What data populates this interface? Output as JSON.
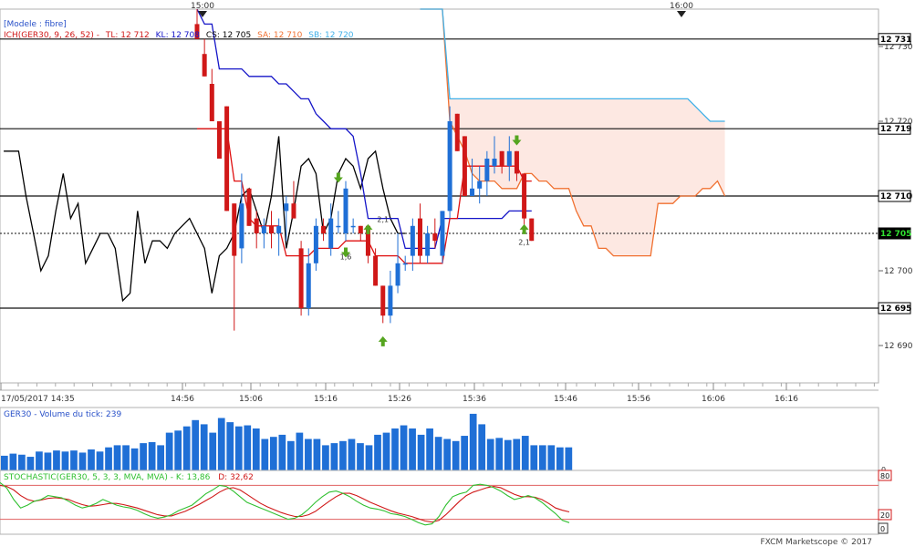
{
  "colors": {
    "candle_up": "#1f6fd6",
    "candle_down": "#d01818",
    "tenkan": "#e01010",
    "kijun": "#1515c8",
    "chikou": "#000000",
    "senkou_a": "#f07030",
    "senkou_b": "#40b0e8",
    "cloud_fill": "#fde8e2",
    "volume": "#1f6fd6",
    "stoch_k": "#30c030",
    "stoch_d": "#d01818",
    "arrow_up": "#55a51f",
    "arrow_down": "#55a51f"
  },
  "header": {
    "model_label": "[Modele : fibre]",
    "ich_label": "ICH(GER30, 9, 26, 52) -",
    "tl": "TL: 12 712",
    "kl": "KL: 12 708",
    "cs": "CS: 12 705",
    "sa": "SA: 12 710",
    "sb": "SB: 12 720"
  },
  "top_time_markers": [
    "15:00",
    "16:00"
  ],
  "price_axis": {
    "ticks": [
      "12 730",
      "12 720",
      "12 710",
      "12 700",
      "12 690"
    ],
    "level_labels": [
      "12 731",
      "12 719",
      "12 710",
      "12 705",
      "12 695"
    ]
  },
  "time_axis": {
    "labels": [
      "17/05/2017 14:35",
      "14:56",
      "15:06",
      "15:16",
      "15:26",
      "15:36",
      "15:46",
      "15:56",
      "16:06",
      "16:16"
    ]
  },
  "signal_labels": [
    "1,6",
    "2,1",
    "2,1"
  ],
  "volume_panel": {
    "label": "GER30 - Volume du tick: 239",
    "axis_zero": "0"
  },
  "stoch_panel": {
    "label_prefix": "STOCHASTIC(GER30, 5, 3, 3, MVA, MVA) - ",
    "k_label": "K: 13,86",
    "d_label": "D: 32,62",
    "level_80": "80",
    "level_20": "20",
    "level_0": "0"
  },
  "footer": {
    "copyright": "FXCM Marketscope © 2017"
  },
  "chart_data": {
    "type": "candlestick",
    "instrument": "GER30",
    "ylim": [
      12685,
      12735
    ],
    "horizontal_levels": [
      12731,
      12719,
      12710,
      12695
    ],
    "current_price": 12705,
    "candles": [
      {
        "o": 12733,
        "h": 12735,
        "l": 12731,
        "c": 12731
      },
      {
        "o": 12729,
        "h": 12731,
        "l": 12726,
        "c": 12726
      },
      {
        "o": 12725,
        "h": 12727,
        "l": 12720,
        "c": 12720
      },
      {
        "o": 12720,
        "h": 12720,
        "l": 12715,
        "c": 12715
      },
      {
        "o": 12722,
        "h": 12722,
        "l": 12708,
        "c": 12708
      },
      {
        "o": 12709,
        "h": 12709,
        "l": 12692,
        "c": 12702
      },
      {
        "o": 12703,
        "h": 12713,
        "l": 12701,
        "c": 12709
      },
      {
        "o": 12711,
        "h": 12711,
        "l": 12706,
        "c": 12706
      },
      {
        "o": 12707,
        "h": 12708,
        "l": 12703,
        "c": 12705
      },
      {
        "o": 12705,
        "h": 12707,
        "l": 12703,
        "c": 12706
      },
      {
        "o": 12706,
        "h": 12708,
        "l": 12703,
        "c": 12705
      },
      {
        "o": 12705,
        "h": 12707,
        "l": 12702,
        "c": 12706
      },
      {
        "o": 12708,
        "h": 12710,
        "l": 12704,
        "c": 12709
      },
      {
        "o": 12709,
        "h": 12712,
        "l": 12707,
        "c": 12707
      },
      {
        "o": 12703,
        "h": 12704,
        "l": 12694,
        "c": 12695
      },
      {
        "o": 12695,
        "h": 12703,
        "l": 12694,
        "c": 12701
      },
      {
        "o": 12701,
        "h": 12707,
        "l": 12700,
        "c": 12706
      },
      {
        "o": 12706,
        "h": 12707,
        "l": 12704,
        "c": 12705
      },
      {
        "o": 12703,
        "h": 12709,
        "l": 12702,
        "c": 12707
      },
      {
        "o": 12706,
        "h": 12708,
        "l": 12705,
        "c": 12706
      },
      {
        "o": 12705,
        "h": 12712,
        "l": 12704,
        "c": 12711
      },
      {
        "o": 12706,
        "h": 12707,
        "l": 12705,
        "c": 12706
      },
      {
        "o": 12706,
        "h": 12706,
        "l": 12704,
        "c": 12705
      },
      {
        "o": 12706,
        "h": 12706,
        "l": 12701,
        "c": 12702
      },
      {
        "o": 12702,
        "h": 12703,
        "l": 12698,
        "c": 12698
      },
      {
        "o": 12698,
        "h": 12698,
        "l": 12693,
        "c": 12694
      },
      {
        "o": 12694,
        "h": 12700,
        "l": 12693,
        "c": 12698
      },
      {
        "o": 12698,
        "h": 12705,
        "l": 12697,
        "c": 12701
      },
      {
        "o": 12701,
        "h": 12702,
        "l": 12700,
        "c": 12701
      },
      {
        "o": 12702,
        "h": 12707,
        "l": 12700,
        "c": 12706
      },
      {
        "o": 12707,
        "h": 12709,
        "l": 12701,
        "c": 12702
      },
      {
        "o": 12702,
        "h": 12706,
        "l": 12701,
        "c": 12705
      },
      {
        "o": 12705,
        "h": 12707,
        "l": 12703,
        "c": 12704
      },
      {
        "o": 12702,
        "h": 12708,
        "l": 12701,
        "c": 12708
      },
      {
        "o": 12708,
        "h": 12722,
        "l": 12707,
        "c": 12720
      },
      {
        "o": 12721,
        "h": 12721,
        "l": 12716,
        "c": 12716
      },
      {
        "o": 12718,
        "h": 12718,
        "l": 12710,
        "c": 12710
      },
      {
        "o": 12710,
        "h": 12715,
        "l": 12710,
        "c": 12711
      },
      {
        "o": 12711,
        "h": 12714,
        "l": 12709,
        "c": 12712
      },
      {
        "o": 12712,
        "h": 12716,
        "l": 12710,
        "c": 12715
      },
      {
        "o": 12714,
        "h": 12718,
        "l": 12713,
        "c": 12715
      },
      {
        "o": 12716,
        "h": 12716,
        "l": 12713,
        "c": 12714
      },
      {
        "o": 12714,
        "h": 12718,
        "l": 12712,
        "c": 12716
      },
      {
        "o": 12716,
        "h": 12716,
        "l": 12712,
        "c": 12713
      },
      {
        "o": 12713,
        "h": 12713,
        "l": 12706,
        "c": 12707
      },
      {
        "o": 12707,
        "h": 12707,
        "l": 12704,
        "c": 12704
      }
    ],
    "tenkan": [
      12719,
      12719,
      12719,
      12719,
      12719,
      12712,
      12712,
      12707,
      12706,
      12706,
      12706,
      12706,
      12702,
      12702,
      12702,
      12702,
      12703,
      12703,
      12703,
      12703,
      12704,
      12704,
      12704,
      12704,
      12702,
      12702,
      12702,
      12702,
      12701,
      12701,
      12701,
      12701,
      12701,
      12701,
      12707,
      12707,
      12714,
      12714,
      12714,
      12714,
      12714,
      12714,
      12714,
      12714,
      12712,
      12712
    ],
    "kijun": [
      12735,
      12733,
      12733,
      12727,
      12727,
      12727,
      12727,
      12726,
      12726,
      12726,
      12726,
      12725,
      12725,
      12724,
      12723,
      12723,
      12721,
      12720,
      12719,
      12719,
      12719,
      12718,
      12713,
      12707,
      12707,
      12707,
      12707,
      12707,
      12703,
      12703,
      12703,
      12703,
      12703,
      12707,
      12707,
      12707,
      12707,
      12707,
      12707,
      12707,
      12707,
      12707,
      12708,
      12708,
      12708,
      12708
    ],
    "chikou": [
      12716,
      12716,
      12716,
      12710,
      12705,
      12700,
      12702,
      12708,
      12713,
      12707,
      12709,
      12701,
      12703,
      12705,
      12705,
      12703,
      12696,
      12697,
      12708,
      12701,
      12704,
      12704,
      12703,
      12705,
      12706,
      12707,
      12705,
      12703,
      12697,
      12702,
      12703,
      12705,
      12710,
      12711,
      12708,
      12705,
      12710,
      12718,
      12703,
      12708,
      12714,
      12715,
      12713,
      12705,
      12707,
      12713,
      12715,
      12714,
      12711,
      12715,
      12716,
      12711,
      12707,
      12705,
      12705
    ],
    "senkou_a": [
      12735,
      12735,
      12735,
      12735,
      12720,
      12718,
      12716,
      12713,
      12712,
      12712,
      12712,
      12711,
      12711,
      12711,
      12713,
      12713,
      12712,
      12712,
      12711,
      12711,
      12711,
      12708,
      12706,
      12706,
      12703,
      12703,
      12702,
      12702,
      12702,
      12702,
      12702,
      12702,
      12709,
      12709,
      12709,
      12710,
      12710,
      12710,
      12711,
      12711,
      12712,
      12710
    ],
    "senkou_b": [
      12735,
      12735,
      12735,
      12735,
      12723,
      12723,
      12723,
      12723,
      12723,
      12723,
      12723,
      12723,
      12723,
      12723,
      12723,
      12723,
      12723,
      12723,
      12723,
      12723,
      12723,
      12723,
      12723,
      12723,
      12723,
      12723,
      12723,
      12723,
      12723,
      12723,
      12723,
      12723,
      12723,
      12723,
      12723,
      12723,
      12723,
      12722,
      12721,
      12720,
      12720,
      12720
    ],
    "arrows": [
      {
        "candle": 19,
        "dir": "down",
        "price": 12712.5
      },
      {
        "candle": 20,
        "dir": "down",
        "price": 12702.5
      },
      {
        "candle": 23,
        "dir": "up",
        "price": 12705.5
      },
      {
        "candle": 25,
        "dir": "up",
        "price": 12690.5
      },
      {
        "candle": 43,
        "dir": "down",
        "price": 12717.5
      },
      {
        "candle": 44,
        "dir": "up",
        "price": 12705.5
      }
    ],
    "signals": [
      {
        "candle": 20,
        "price": 12701.5,
        "label_index": 0
      },
      {
        "candle": 25,
        "price": 12706.5,
        "label_index": 1
      },
      {
        "candle": 44,
        "price": 12703.5,
        "label_index": 2
      }
    ],
    "volume": {
      "ylim": [
        0,
        300
      ],
      "values": [
        70,
        80,
        75,
        65,
        90,
        85,
        95,
        90,
        95,
        85,
        100,
        90,
        110,
        120,
        120,
        105,
        130,
        135,
        120,
        180,
        190,
        210,
        240,
        220,
        180,
        250,
        230,
        210,
        215,
        200,
        150,
        160,
        170,
        140,
        180,
        150,
        150,
        120,
        130,
        140,
        150,
        130,
        120,
        170,
        180,
        200,
        215,
        200,
        170,
        200,
        160,
        150,
        140,
        165,
        270,
        220,
        150,
        155,
        145,
        150,
        165,
        120,
        120,
        120,
        110,
        110
      ]
    },
    "stochastic": {
      "ylim": [
        0,
        100
      ],
      "levels": [
        80,
        20
      ],
      "k": [
        85,
        75,
        55,
        40,
        45,
        52,
        55,
        62,
        60,
        58,
        52,
        45,
        40,
        43,
        48,
        55,
        50,
        45,
        42,
        40,
        36,
        30,
        25,
        22,
        24,
        28,
        35,
        40,
        45,
        55,
        65,
        72,
        80,
        78,
        70,
        60,
        50,
        45,
        40,
        35,
        30,
        25,
        20,
        22,
        28,
        38,
        50,
        60,
        68,
        70,
        66,
        60,
        52,
        45,
        40,
        38,
        35,
        30,
        28,
        25,
        20,
        14,
        10,
        12,
        25,
        45,
        60,
        65,
        68,
        80,
        82,
        80,
        76,
        70,
        62,
        55,
        58,
        62,
        58,
        50,
        40,
        30,
        18,
        14
      ],
      "d": [
        80,
        78,
        72,
        62,
        55,
        52,
        54,
        57,
        58,
        57,
        55,
        50,
        46,
        43,
        44,
        46,
        48,
        48,
        46,
        43,
        40,
        36,
        32,
        28,
        26,
        26,
        30,
        34,
        40,
        46,
        53,
        60,
        68,
        74,
        76,
        72,
        64,
        56,
        48,
        42,
        37,
        32,
        28,
        25,
        25,
        28,
        34,
        43,
        52,
        60,
        66,
        66,
        62,
        56,
        50,
        45,
        40,
        35,
        31,
        28,
        25,
        21,
        17,
        15,
        18,
        28,
        40,
        52,
        62,
        68,
        72,
        76,
        78,
        76,
        70,
        64,
        60,
        60,
        59,
        55,
        48,
        40,
        36,
        33
      ]
    }
  }
}
